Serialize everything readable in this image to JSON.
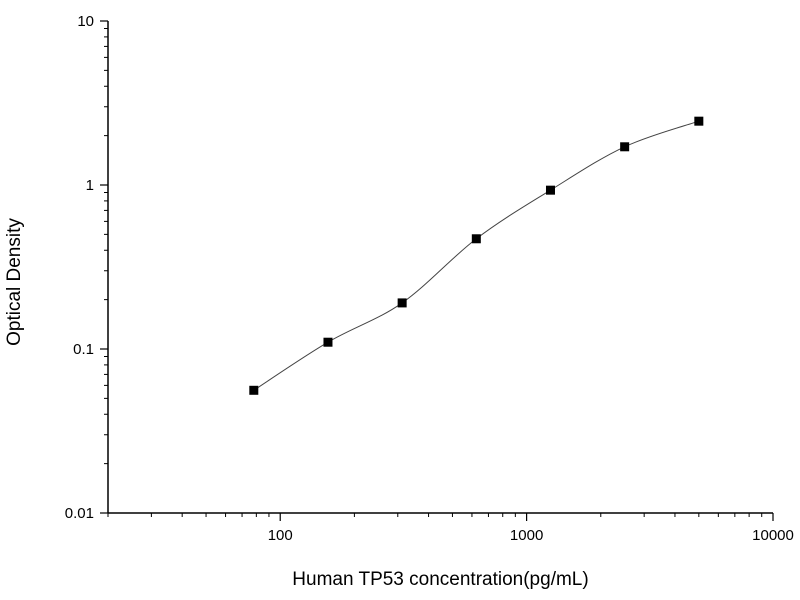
{
  "chart_data": {
    "type": "scatter",
    "title": "",
    "xlabel": "Human TP53 concentration(pg/mL)",
    "ylabel": "Optical Density",
    "x_scale": "log",
    "y_scale": "log",
    "xlim": [
      20,
      10000
    ],
    "ylim": [
      0.01,
      10
    ],
    "x_ticks": [
      {
        "value": 100,
        "label": "100"
      },
      {
        "value": 1000,
        "label": "1000"
      },
      {
        "value": 10000,
        "label": "10000"
      }
    ],
    "y_ticks": [
      {
        "value": 10,
        "label": "10"
      },
      {
        "value": 1,
        "label": "1"
      },
      {
        "value": 0.1,
        "label": "0.1"
      },
      {
        "value": 0.01,
        "label": "0.01"
      }
    ],
    "grid": false,
    "series": [
      {
        "marker": "square",
        "color": "#000000",
        "fit_curve": true,
        "x": [
          78.125,
          156.25,
          312.5,
          625,
          1250,
          2500,
          5000
        ],
        "y": [
          0.056,
          0.11,
          0.191,
          0.47,
          0.93,
          1.71,
          2.45
        ]
      }
    ]
  }
}
